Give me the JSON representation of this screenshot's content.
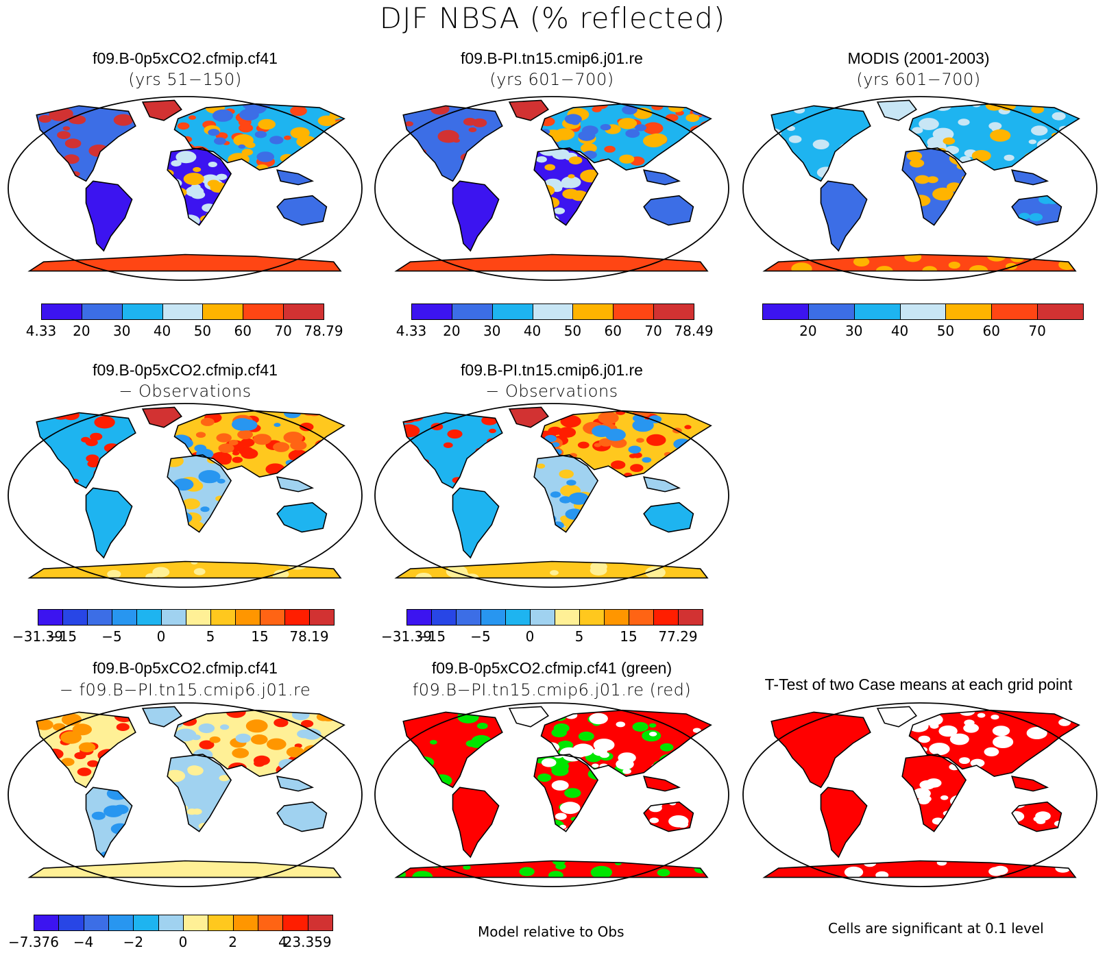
{
  "title": "DJF NBSA (% reflected)",
  "colors": {
    "c1": "#3c14f0",
    "c2": "#3c6ee6",
    "c3": "#1eb4f0",
    "c4": "#c8e6f5",
    "c5": "#ffb400",
    "c6": "#ff4614",
    "c7": "#d23232",
    "d1": "#3c14f0",
    "d2": "#2846e6",
    "d3": "#3c6ee6",
    "d4": "#2896f0",
    "d5": "#1eb4f0",
    "d6": "#a0d2f0",
    "d7": "#fff096",
    "d8": "#ffc81e",
    "d9": "#ff9600",
    "d10": "#ff6414",
    "d11": "#ff1e00",
    "d12": "#d23232",
    "sig_red": "#ff0000",
    "sig_green": "#00e600"
  },
  "panels": [
    {
      "id": "p1",
      "title": "f09.B-0p5xCO2.cfmip.cf41",
      "subtitle": "(yrs 51−150)",
      "scheme": "abs"
    },
    {
      "id": "p2",
      "title": "f09.B-PI.tn15.cmip6.j01.re",
      "subtitle": "(yrs 601−700)",
      "scheme": "abs"
    },
    {
      "id": "p3",
      "title": "MODIS (2001-2003)",
      "subtitle": "(yrs 601−700)",
      "scheme": "obs"
    },
    {
      "id": "p4",
      "title": "f09.B-0p5xCO2.cfmip.cf41",
      "subtitle": "− Observations",
      "scheme": "diff"
    },
    {
      "id": "p5",
      "title": "f09.B-PI.tn15.cmip6.j01.re",
      "subtitle": "− Observations",
      "scheme": "diff"
    },
    {
      "id": "p6",
      "title": "f09.B-0p5xCO2.cfmip.cf41",
      "subtitle": "− f09.B−PI.tn15.cmip6.j01.re",
      "scheme": "diff2"
    },
    {
      "id": "p7",
      "title": "f09.B-0p5xCO2.cfmip.cf41 (green)",
      "subtitle": "f09.B−PI.tn15.cmip6.j01.re (red)",
      "scheme": "sig2"
    },
    {
      "id": "p8",
      "title": "T-Test of two Case means at each grid point",
      "subtitle": "",
      "scheme": "sig"
    }
  ],
  "colorbars": [
    {
      "id": "cb1",
      "colors": [
        "c1",
        "c2",
        "c3",
        "c4",
        "c5",
        "c6",
        "c7"
      ],
      "labels": [
        "4.33",
        "20",
        "30",
        "40",
        "50",
        "60",
        "70",
        "78.79"
      ]
    },
    {
      "id": "cb2",
      "colors": [
        "c1",
        "c2",
        "c3",
        "c4",
        "c5",
        "c6",
        "c7"
      ],
      "labels": [
        "4.33",
        "20",
        "30",
        "40",
        "50",
        "60",
        "70",
        "78.49"
      ]
    },
    {
      "id": "cb3",
      "colors": [
        "c1",
        "c2",
        "c3",
        "c4",
        "c5",
        "c6",
        "c7"
      ],
      "labels": [
        "",
        "20",
        "30",
        "40",
        "50",
        "60",
        "70",
        ""
      ]
    },
    {
      "id": "cb4",
      "colors": [
        "d1",
        "d2",
        "d3",
        "d4",
        "d5",
        "d6",
        "d7",
        "d8",
        "d9",
        "d10",
        "d11",
        "d12"
      ],
      "labels": [
        "−31.39",
        "−15",
        "",
        "−5",
        "",
        "0",
        "",
        "5",
        "",
        "15",
        "",
        "78.19"
      ]
    },
    {
      "id": "cb5",
      "colors": [
        "d1",
        "d2",
        "d3",
        "d4",
        "d5",
        "d6",
        "d7",
        "d8",
        "d9",
        "d10",
        "d11",
        "d12"
      ],
      "labels": [
        "−31.39",
        "−15",
        "",
        "−5",
        "",
        "0",
        "",
        "5",
        "",
        "15",
        "",
        "77.29"
      ]
    },
    {
      "id": "cb6",
      "colors": [
        "d1",
        "d2",
        "d3",
        "d4",
        "d5",
        "d6",
        "d7",
        "d8",
        "d9",
        "d10",
        "d11",
        "d12"
      ],
      "labels": [
        "−7.376",
        "",
        "−4",
        "",
        "−2",
        "",
        "0",
        "",
        "2",
        "",
        "4",
        "23.359"
      ]
    }
  ],
  "notes": {
    "model_rel": "Model relative to Obs",
    "cells_sig": "Cells are significant at 0.1 level"
  }
}
